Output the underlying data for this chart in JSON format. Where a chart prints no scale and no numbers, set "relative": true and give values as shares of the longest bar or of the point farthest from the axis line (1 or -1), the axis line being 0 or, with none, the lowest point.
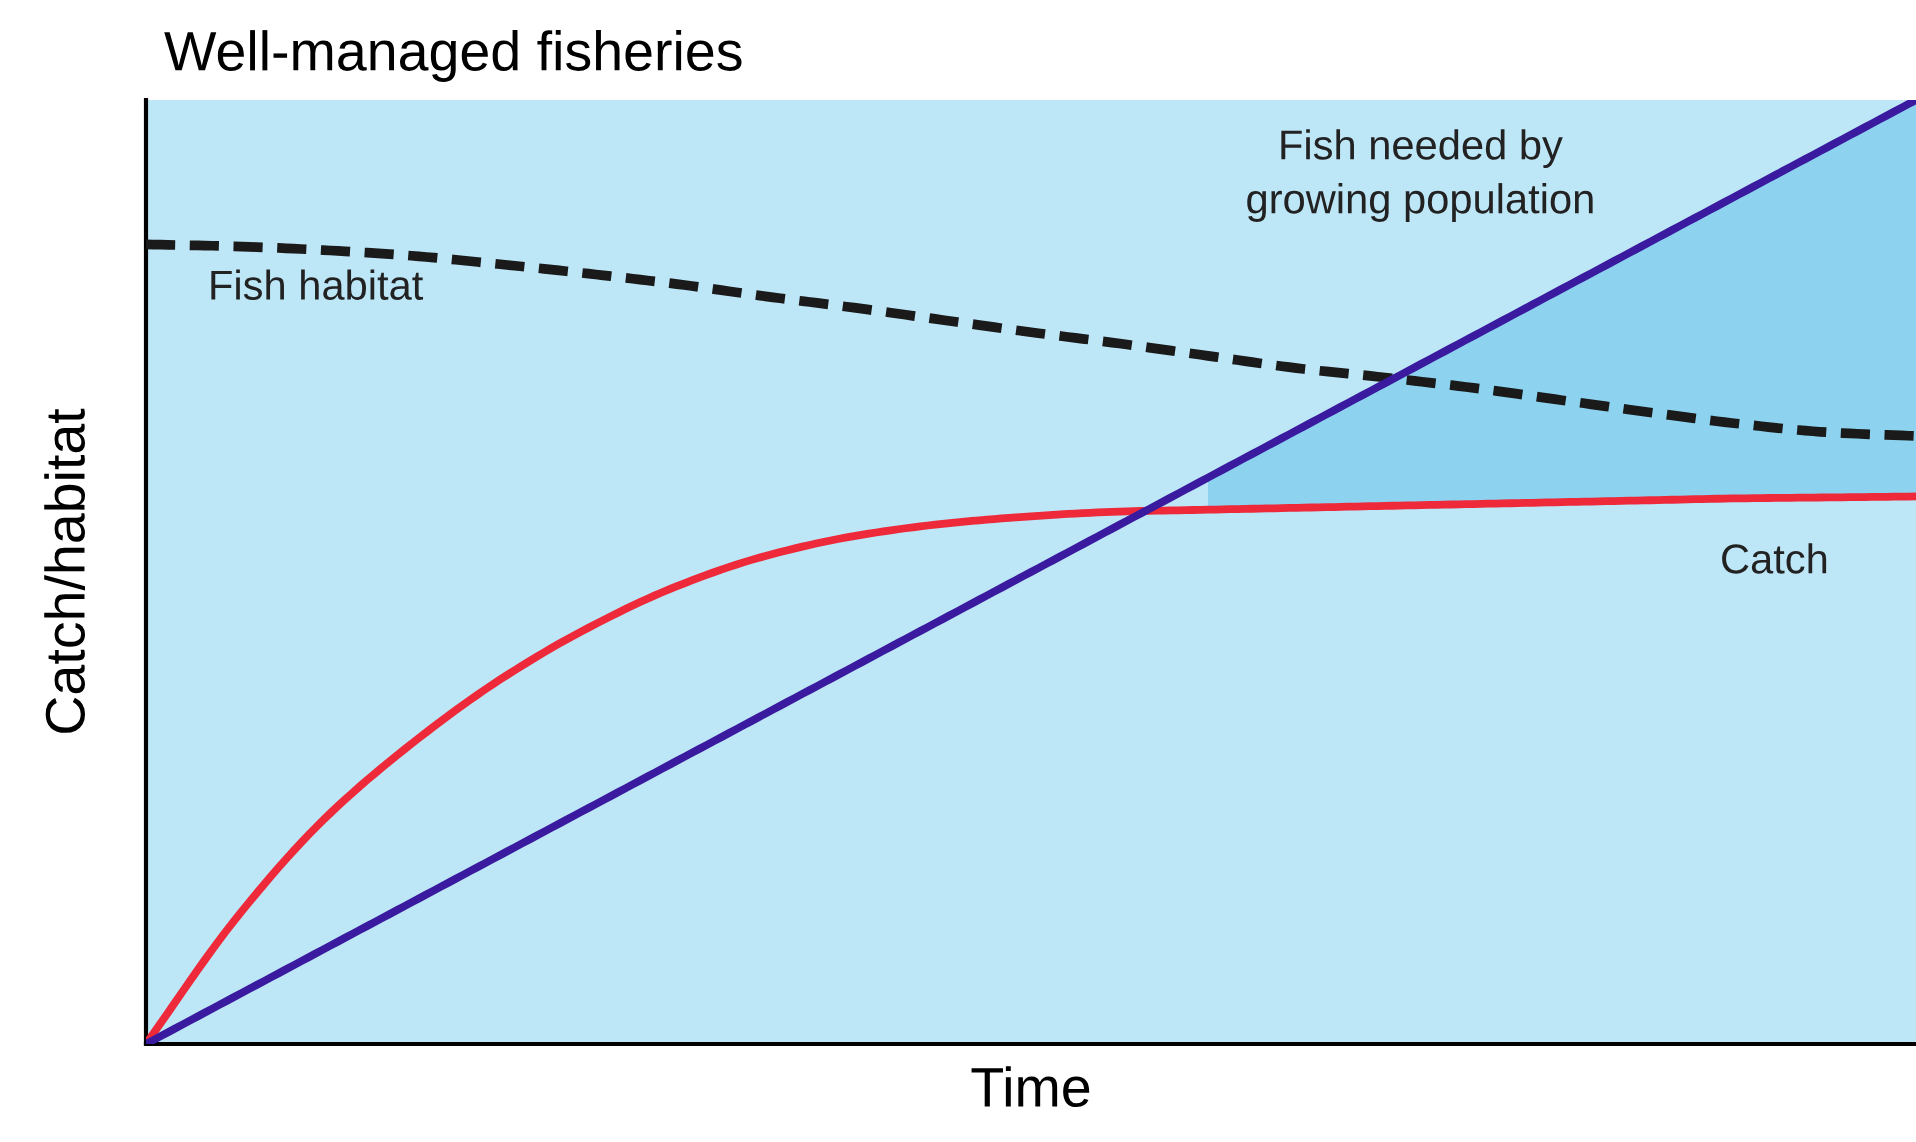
{
  "chart_data": {
    "type": "line",
    "title": "Well-managed fisheries",
    "xlabel": "Time",
    "ylabel": "Catch/habitat",
    "relative": true,
    "legend": false,
    "marker": "none",
    "categories": [
      null,
      null,
      null,
      null,
      null,
      null,
      null,
      null,
      null,
      null,
      null,
      null,
      null,
      null,
      null,
      null,
      null,
      null,
      null,
      null,
      null
    ],
    "series": [
      {
        "name": "Fish habitat",
        "color": "#1a1a1a",
        "line_style": "dashed",
        "values": [
          0.847,
          0.845,
          0.841,
          0.835,
          0.826,
          0.816,
          0.805,
          0.792,
          0.78,
          0.767,
          0.754,
          0.742,
          0.729,
          0.716,
          0.706,
          0.695,
          0.682,
          0.669,
          0.657,
          0.648,
          0.644
        ]
      },
      {
        "name": "Catch",
        "color": "#ee2a3a",
        "line_style": "solid",
        "values": [
          0,
          0.131,
          0.237,
          0.318,
          0.386,
          0.441,
          0.485,
          0.517,
          0.538,
          0.551,
          0.559,
          0.564,
          0.566,
          0.568,
          0.57,
          0.572,
          0.574,
          0.576,
          0.578,
          0.579,
          0.58
        ]
      },
      {
        "name": "Fish needed by\ngrowing population",
        "color": "#3a1a9e",
        "line_style": "solid",
        "values": [
          0,
          0.05,
          0.1,
          0.15,
          0.2,
          0.25,
          0.3,
          0.35,
          0.4,
          0.45,
          0.5,
          0.55,
          0.6,
          0.65,
          0.7,
          0.75,
          0.8,
          0.85,
          0.9,
          0.95,
          1.0
        ],
        "lower": [
          null,
          null,
          null,
          null,
          null,
          null,
          null,
          null,
          null,
          null,
          null,
          null,
          0.566,
          0.568,
          0.57,
          0.572,
          0.574,
          0.576,
          0.578,
          0.579,
          0.58
        ],
        "upper": [
          null,
          null,
          null,
          null,
          null,
          null,
          null,
          null,
          null,
          null,
          null,
          null,
          0.6,
          0.65,
          0.7,
          0.75,
          0.8,
          0.85,
          0.9,
          0.95,
          1.0
        ]
      }
    ]
  }
}
